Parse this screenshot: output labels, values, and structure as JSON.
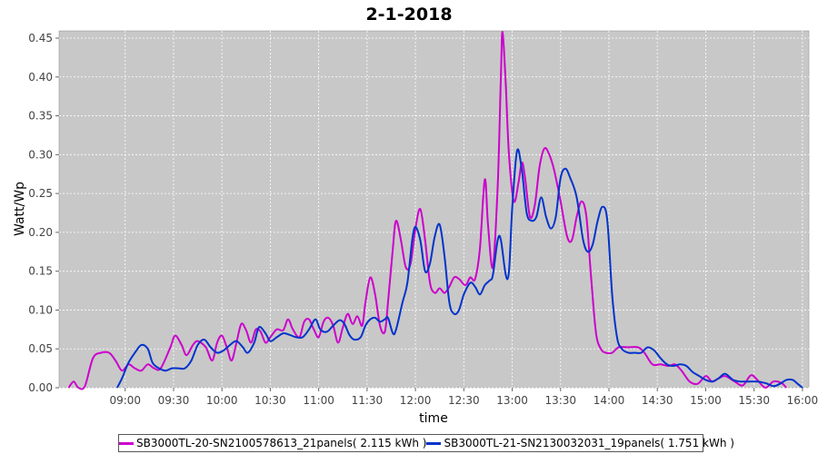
{
  "chart_data": {
    "type": "line",
    "title": "2-1-2018",
    "xlabel": "time",
    "ylabel": "Watt/Wp",
    "xlim": [
      "08:30",
      "16:00"
    ],
    "ylim": [
      0,
      0.45
    ],
    "x_ticks": [
      "09:00",
      "09:30",
      "10:00",
      "10:30",
      "11:00",
      "11:30",
      "12:00",
      "12:30",
      "13:00",
      "13:30",
      "14:00",
      "14:30",
      "15:00",
      "15:30",
      "16:00"
    ],
    "y_ticks": [
      "0.00",
      "0.05",
      "0.10",
      "0.15",
      "0.20",
      "0.25",
      "0.30",
      "0.35",
      "0.40",
      "0.45"
    ],
    "grid": true,
    "legend_position": "bottom",
    "plot_background": "#c8c8c8",
    "series": [
      {
        "name": "SB3000TL-20-SN2100578613_21panels( 2.115 kWh )",
        "color": "#cc00cc",
        "points": [
          [
            "08:25",
            0.0
          ],
          [
            "08:28",
            0.008
          ],
          [
            "08:31",
            0.0
          ],
          [
            "08:35",
            0.002
          ],
          [
            "08:40",
            0.038
          ],
          [
            "08:45",
            0.045
          ],
          [
            "08:50",
            0.045
          ],
          [
            "08:54",
            0.035
          ],
          [
            "08:58",
            0.022
          ],
          [
            "09:02",
            0.03
          ],
          [
            "09:06",
            0.025
          ],
          [
            "09:10",
            0.022
          ],
          [
            "09:14",
            0.03
          ],
          [
            "09:18",
            0.025
          ],
          [
            "09:22",
            0.025
          ],
          [
            "09:28",
            0.052
          ],
          [
            "09:31",
            0.067
          ],
          [
            "09:35",
            0.055
          ],
          [
            "09:38",
            0.042
          ],
          [
            "09:42",
            0.055
          ],
          [
            "09:45",
            0.06
          ],
          [
            "09:50",
            0.052
          ],
          [
            "09:54",
            0.035
          ],
          [
            "09:57",
            0.058
          ],
          [
            "10:00",
            0.067
          ],
          [
            "10:03",
            0.052
          ],
          [
            "10:06",
            0.035
          ],
          [
            "10:09",
            0.058
          ],
          [
            "10:12",
            0.082
          ],
          [
            "10:15",
            0.074
          ],
          [
            "10:18",
            0.058
          ],
          [
            "10:21",
            0.075
          ],
          [
            "10:24",
            0.072
          ],
          [
            "10:27",
            0.058
          ],
          [
            "10:30",
            0.065
          ],
          [
            "10:34",
            0.075
          ],
          [
            "10:38",
            0.074
          ],
          [
            "10:41",
            0.088
          ],
          [
            "10:44",
            0.075
          ],
          [
            "10:48",
            0.065
          ],
          [
            "10:51",
            0.085
          ],
          [
            "10:54",
            0.088
          ],
          [
            "10:57",
            0.075
          ],
          [
            "11:00",
            0.065
          ],
          [
            "11:03",
            0.085
          ],
          [
            "11:06",
            0.09
          ],
          [
            "11:09",
            0.08
          ],
          [
            "11:12",
            0.058
          ],
          [
            "11:15",
            0.078
          ],
          [
            "11:18",
            0.095
          ],
          [
            "11:21",
            0.082
          ],
          [
            "11:24",
            0.092
          ],
          [
            "11:27",
            0.08
          ],
          [
            "11:29",
            0.11
          ],
          [
            "11:32",
            0.142
          ],
          [
            "11:35",
            0.12
          ],
          [
            "11:38",
            0.08
          ],
          [
            "11:41",
            0.072
          ],
          [
            "11:43",
            0.11
          ],
          [
            "11:46",
            0.18
          ],
          [
            "11:48",
            0.215
          ],
          [
            "11:51",
            0.19
          ],
          [
            "11:54",
            0.155
          ],
          [
            "11:57",
            0.16
          ],
          [
            "12:00",
            0.205
          ],
          [
            "12:03",
            0.23
          ],
          [
            "12:06",
            0.19
          ],
          [
            "12:09",
            0.135
          ],
          [
            "12:12",
            0.122
          ],
          [
            "12:15",
            0.128
          ],
          [
            "12:18",
            0.122
          ],
          [
            "12:21",
            0.13
          ],
          [
            "12:24",
            0.142
          ],
          [
            "12:27",
            0.14
          ],
          [
            "12:31",
            0.132
          ],
          [
            "12:34",
            0.142
          ],
          [
            "12:37",
            0.14
          ],
          [
            "12:40",
            0.18
          ],
          [
            "12:43",
            0.268
          ],
          [
            "12:45",
            0.21
          ],
          [
            "12:48",
            0.155
          ],
          [
            "12:51",
            0.26
          ],
          [
            "12:53",
            0.4
          ],
          [
            "12:54",
            0.458
          ],
          [
            "12:56",
            0.39
          ],
          [
            "12:58",
            0.3
          ],
          [
            "13:01",
            0.24
          ],
          [
            "13:04",
            0.265
          ],
          [
            "13:06",
            0.29
          ],
          [
            "13:08",
            0.27
          ],
          [
            "13:11",
            0.22
          ],
          [
            "13:14",
            0.235
          ],
          [
            "13:17",
            0.285
          ],
          [
            "13:20",
            0.308
          ],
          [
            "13:23",
            0.3
          ],
          [
            "13:26",
            0.28
          ],
          [
            "13:30",
            0.24
          ],
          [
            "13:34",
            0.195
          ],
          [
            "13:37",
            0.19
          ],
          [
            "13:40",
            0.22
          ],
          [
            "13:43",
            0.24
          ],
          [
            "13:46",
            0.22
          ],
          [
            "13:49",
            0.14
          ],
          [
            "13:52",
            0.07
          ],
          [
            "13:55",
            0.05
          ],
          [
            "13:58",
            0.045
          ],
          [
            "14:02",
            0.045
          ],
          [
            "14:06",
            0.052
          ],
          [
            "14:12",
            0.052
          ],
          [
            "14:18",
            0.052
          ],
          [
            "14:22",
            0.045
          ],
          [
            "14:27",
            0.03
          ],
          [
            "14:32",
            0.03
          ],
          [
            "14:37",
            0.028
          ],
          [
            "14:41",
            0.03
          ],
          [
            "14:45",
            0.022
          ],
          [
            "14:50",
            0.008
          ],
          [
            "14:55",
            0.005
          ],
          [
            "15:00",
            0.015
          ],
          [
            "15:04",
            0.008
          ],
          [
            "15:08",
            0.012
          ],
          [
            "15:12",
            0.015
          ],
          [
            "15:18",
            0.008
          ],
          [
            "15:23",
            0.003
          ],
          [
            "15:28",
            0.016
          ],
          [
            "15:32",
            0.01
          ],
          [
            "15:37",
            0.0
          ],
          [
            "15:42",
            0.008
          ],
          [
            "15:47",
            0.006
          ],
          [
            "15:50",
            0.0
          ]
        ]
      },
      {
        "name": "SB3000TL-21-SN2130032031_19panels( 1.751 kWh )",
        "color": "#0033cc",
        "points": [
          [
            "08:55",
            0.0
          ],
          [
            "08:58",
            0.012
          ],
          [
            "09:02",
            0.032
          ],
          [
            "09:06",
            0.045
          ],
          [
            "09:10",
            0.055
          ],
          [
            "09:14",
            0.05
          ],
          [
            "09:17",
            0.032
          ],
          [
            "09:21",
            0.025
          ],
          [
            "09:25",
            0.022
          ],
          [
            "09:29",
            0.025
          ],
          [
            "09:33",
            0.025
          ],
          [
            "09:37",
            0.025
          ],
          [
            "09:41",
            0.035
          ],
          [
            "09:45",
            0.055
          ],
          [
            "09:49",
            0.062
          ],
          [
            "09:53",
            0.052
          ],
          [
            "09:57",
            0.045
          ],
          [
            "10:01",
            0.048
          ],
          [
            "10:05",
            0.055
          ],
          [
            "10:09",
            0.06
          ],
          [
            "10:13",
            0.052
          ],
          [
            "10:16",
            0.045
          ],
          [
            "10:20",
            0.058
          ],
          [
            "10:23",
            0.078
          ],
          [
            "10:27",
            0.07
          ],
          [
            "10:30",
            0.06
          ],
          [
            "10:34",
            0.065
          ],
          [
            "10:38",
            0.07
          ],
          [
            "10:42",
            0.068
          ],
          [
            "10:46",
            0.065
          ],
          [
            "10:50",
            0.065
          ],
          [
            "10:54",
            0.075
          ],
          [
            "10:58",
            0.088
          ],
          [
            "11:01",
            0.075
          ],
          [
            "11:05",
            0.072
          ],
          [
            "11:09",
            0.08
          ],
          [
            "11:13",
            0.087
          ],
          [
            "11:16",
            0.082
          ],
          [
            "11:19",
            0.068
          ],
          [
            "11:22",
            0.062
          ],
          [
            "11:26",
            0.065
          ],
          [
            "11:29",
            0.08
          ],
          [
            "11:32",
            0.088
          ],
          [
            "11:35",
            0.09
          ],
          [
            "11:38",
            0.085
          ],
          [
            "11:41",
            0.088
          ],
          [
            "11:43",
            0.09
          ],
          [
            "11:46",
            0.07
          ],
          [
            "11:48",
            0.075
          ],
          [
            "11:52",
            0.11
          ],
          [
            "11:55",
            0.135
          ],
          [
            "11:58",
            0.19
          ],
          [
            "12:00",
            0.207
          ],
          [
            "12:03",
            0.19
          ],
          [
            "12:06",
            0.15
          ],
          [
            "12:09",
            0.16
          ],
          [
            "12:12",
            0.195
          ],
          [
            "12:15",
            0.21
          ],
          [
            "12:18",
            0.17
          ],
          [
            "12:21",
            0.11
          ],
          [
            "12:24",
            0.095
          ],
          [
            "12:27",
            0.1
          ],
          [
            "12:30",
            0.12
          ],
          [
            "12:34",
            0.135
          ],
          [
            "12:37",
            0.13
          ],
          [
            "12:40",
            0.12
          ],
          [
            "12:43",
            0.132
          ],
          [
            "12:46",
            0.138
          ],
          [
            "12:48",
            0.145
          ],
          [
            "12:51",
            0.19
          ],
          [
            "12:53",
            0.19
          ],
          [
            "12:56",
            0.145
          ],
          [
            "12:58",
            0.15
          ],
          [
            "13:00",
            0.23
          ],
          [
            "13:03",
            0.305
          ],
          [
            "13:06",
            0.28
          ],
          [
            "13:09",
            0.225
          ],
          [
            "13:12",
            0.215
          ],
          [
            "13:15",
            0.22
          ],
          [
            "13:18",
            0.245
          ],
          [
            "13:21",
            0.22
          ],
          [
            "13:24",
            0.205
          ],
          [
            "13:27",
            0.22
          ],
          [
            "13:30",
            0.27
          ],
          [
            "13:33",
            0.282
          ],
          [
            "13:36",
            0.27
          ],
          [
            "13:40",
            0.245
          ],
          [
            "13:44",
            0.19
          ],
          [
            "13:47",
            0.175
          ],
          [
            "13:50",
            0.185
          ],
          [
            "13:53",
            0.215
          ],
          [
            "13:56",
            0.233
          ],
          [
            "13:59",
            0.215
          ],
          [
            "14:02",
            0.12
          ],
          [
            "14:05",
            0.065
          ],
          [
            "14:08",
            0.05
          ],
          [
            "14:12",
            0.045
          ],
          [
            "14:16",
            0.045
          ],
          [
            "14:20",
            0.045
          ],
          [
            "14:24",
            0.052
          ],
          [
            "14:28",
            0.048
          ],
          [
            "14:32",
            0.038
          ],
          [
            "14:36",
            0.03
          ],
          [
            "14:40",
            0.028
          ],
          [
            "14:44",
            0.03
          ],
          [
            "14:48",
            0.028
          ],
          [
            "14:52",
            0.02
          ],
          [
            "14:56",
            0.015
          ],
          [
            "15:00",
            0.01
          ],
          [
            "15:04",
            0.008
          ],
          [
            "15:08",
            0.012
          ],
          [
            "15:12",
            0.018
          ],
          [
            "15:17",
            0.01
          ],
          [
            "15:22",
            0.008
          ],
          [
            "15:27",
            0.008
          ],
          [
            "15:32",
            0.008
          ],
          [
            "15:37",
            0.006
          ],
          [
            "15:42",
            0.002
          ],
          [
            "15:46",
            0.005
          ],
          [
            "15:50",
            0.01
          ],
          [
            "15:54",
            0.01
          ],
          [
            "15:57",
            0.005
          ],
          [
            "16:00",
            0.0
          ]
        ]
      }
    ]
  }
}
